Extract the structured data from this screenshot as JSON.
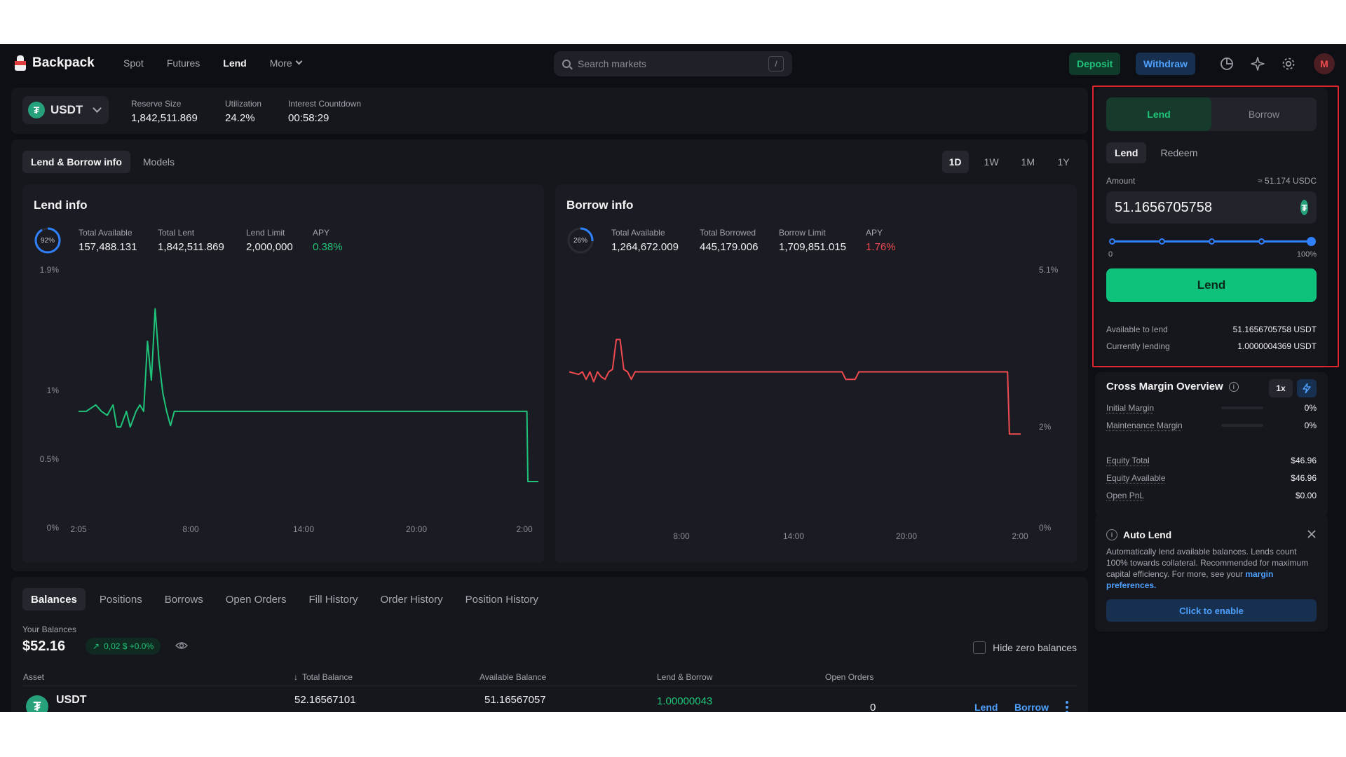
{
  "header": {
    "brand": "Backpack",
    "nav": [
      "Spot",
      "Futures",
      "Lend",
      "More"
    ],
    "active_nav": "Lend",
    "search_placeholder": "Search markets",
    "search_shortcut": "/",
    "deposit_label": "Deposit",
    "withdraw_label": "Withdraw",
    "icons": [
      "portfolio-pie-icon",
      "sparkle-icon",
      "gear-icon"
    ],
    "avatar_initial": "M"
  },
  "market": {
    "asset": "USDT",
    "asset_icon": "tether-icon",
    "stats": [
      {
        "label": "Reserve Size",
        "value": "1,842,511.869"
      },
      {
        "label": "Utilization",
        "value": "24.2%"
      },
      {
        "label": "Interest Countdown",
        "value": "00:58:29"
      }
    ]
  },
  "chart_tabs": {
    "left": [
      "Lend & Borrow info",
      "Models"
    ],
    "active_left": "Lend & Borrow info",
    "timeframes": [
      "1D",
      "1W",
      "1M",
      "1Y"
    ],
    "active_timeframe": "1D"
  },
  "lend_info": {
    "title": "Lend info",
    "ring_value": "92%",
    "stats": [
      {
        "label": "Total Available",
        "value": "157,488.131"
      },
      {
        "label": "Total Lent",
        "value": "1,842,511.869"
      },
      {
        "label": "Lend Limit",
        "value": "2,000,000"
      },
      {
        "label": "APY",
        "value": "0.38%"
      }
    ]
  },
  "borrow_info": {
    "title": "Borrow info",
    "ring_value": "26%",
    "stats": [
      {
        "label": "Total Available",
        "value": "1,264,672.009"
      },
      {
        "label": "Total Borrowed",
        "value": "445,179.006"
      },
      {
        "label": "Borrow Limit",
        "value": "1,709,851.015"
      },
      {
        "label": "APY",
        "value": "1.76%"
      }
    ]
  },
  "chart_data": [
    {
      "type": "line",
      "title": "Lend info",
      "color": "#1fc47a",
      "y_ticks": [
        "1.9%",
        "1%",
        "0.5%",
        "0%"
      ],
      "x_ticks": [
        "2:05",
        "8:00",
        "14:00",
        "20:00",
        "2:00"
      ],
      "ylim": [
        0,
        1.9
      ],
      "series": [
        {
          "x": [
            0,
            0.4,
            0.9,
            1.2,
            1.5,
            1.8,
            2.0,
            2.2,
            2.5,
            2.7,
            3.0,
            3.2,
            3.4,
            3.6,
            3.8,
            4.0,
            4.2,
            4.4,
            4.6,
            4.8,
            5.0,
            5.3,
            5.6,
            6.0,
            8.0,
            12.0,
            16.0,
            20.0,
            23.4,
            23.45,
            23.8,
            24.0
          ],
          "y": [
            0.81,
            0.81,
            0.86,
            0.81,
            0.78,
            0.86,
            0.69,
            0.69,
            0.81,
            0.69,
            0.81,
            0.86,
            0.81,
            1.35,
            1.05,
            1.6,
            1.2,
            0.95,
            0.81,
            0.7,
            0.81,
            0.81,
            0.81,
            0.81,
            0.81,
            0.81,
            0.81,
            0.81,
            0.81,
            0.27,
            0.27,
            0.27
          ]
        }
      ]
    },
    {
      "type": "line",
      "title": "Borrow info",
      "color": "#ef4a4f",
      "y_ticks": [
        "5.1%",
        "2%",
        "0%"
      ],
      "x_ticks": [
        "8:00",
        "14:00",
        "20:00",
        "2:00"
      ],
      "ylim": [
        0,
        5.1
      ],
      "series": [
        {
          "x": [
            0,
            0.5,
            0.7,
            0.9,
            1.1,
            1.3,
            1.5,
            1.7,
            1.9,
            2.1,
            2.3,
            2.5,
            2.7,
            2.9,
            3.1,
            3.3,
            3.5,
            3.7,
            4.0,
            6.0,
            10.0,
            14.5,
            14.7,
            15.2,
            15.4,
            18.0,
            22.0,
            23.3,
            23.4,
            24.0
          ],
          "y": [
            3.05,
            3.0,
            3.05,
            2.9,
            3.05,
            2.85,
            3.05,
            2.95,
            2.9,
            3.05,
            3.1,
            3.7,
            3.7,
            3.1,
            3.05,
            2.9,
            3.05,
            3.05,
            3.05,
            3.05,
            3.05,
            3.05,
            2.9,
            2.9,
            3.05,
            3.05,
            3.05,
            3.05,
            1.8,
            1.8
          ]
        }
      ]
    }
  ],
  "balances": {
    "tabs": [
      "Balances",
      "Positions",
      "Borrows",
      "Open Orders",
      "Fill History",
      "Order History",
      "Position History"
    ],
    "active_tab": "Balances",
    "your_balances_label": "Your Balances",
    "total": "$52.16",
    "change": "0,02 $  +0.0%",
    "hide_zero_label": "Hide zero balances",
    "columns": [
      "Asset",
      "Total Balance",
      "Available Balance",
      "Lend & Borrow",
      "Open Orders"
    ],
    "rows": [
      {
        "asset": "USDT",
        "total": "52.16567101",
        "available": "51.16567057",
        "lend_borrow": "1.00000043",
        "open_orders": "0",
        "actions": [
          "Lend",
          "Borrow"
        ]
      }
    ]
  },
  "trade": {
    "mode_tabs": [
      "Lend",
      "Borrow"
    ],
    "active_mode": "Lend",
    "sub_tabs": [
      "Lend",
      "Redeem"
    ],
    "active_sub": "Lend",
    "amount_label": "Amount",
    "amount_approx": "≈ 51.174 USDC",
    "amount_value": "51.1656705758",
    "slider_min": "0",
    "slider_max": "100%",
    "slider_percent": 100,
    "submit_label": "Lend",
    "available_label": "Available to lend",
    "available_value": "51.1656705758 USDT",
    "current_label": "Currently lending",
    "current_value": "1.0000004369 USDT"
  },
  "cross_margin": {
    "title": "Cross Margin Overview",
    "leverage": "1x",
    "rows": [
      {
        "label": "Initial Margin",
        "value": "0%"
      },
      {
        "label": "Maintenance Margin",
        "value": "0%"
      },
      {
        "label": "Equity Total",
        "value": "$46.96"
      },
      {
        "label": "Equity Available",
        "value": "$46.96"
      },
      {
        "label": "Open PnL",
        "value": "$0.00"
      }
    ]
  },
  "auto_lend": {
    "title": "Auto Lend",
    "description": "Automatically lend available balances. Lends count 100% towards collateral. Recommended for maximum capital efficiency. For more, see your ",
    "link": "margin preferences.",
    "button": "Click to enable"
  }
}
